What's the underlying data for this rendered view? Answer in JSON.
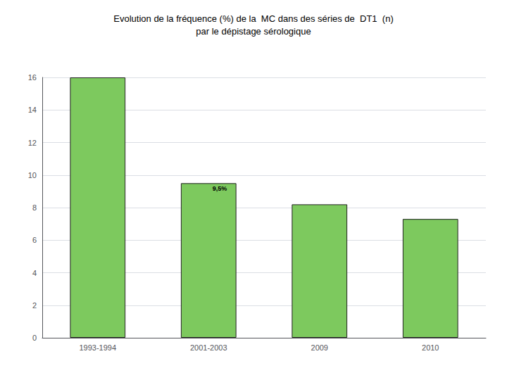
{
  "chart_data": {
    "type": "bar",
    "title": "Evolution de la fréquence (%) de la  MC dans des séries de  DT1  (n)\npar le dépistage sérologique",
    "categories": [
      "1993-1994",
      "2001-2003",
      "2009",
      "2010"
    ],
    "values": [
      16.0,
      9.5,
      8.2,
      7.3
    ],
    "color": "#7DC95E",
    "ylim": [
      0,
      16
    ],
    "yticks": [
      0,
      2,
      4,
      6,
      8,
      10,
      12,
      14,
      16
    ],
    "grid": true,
    "annotations": [
      {
        "text": "9,5%",
        "x": "2001-2003",
        "y": 9.5
      }
    ]
  }
}
